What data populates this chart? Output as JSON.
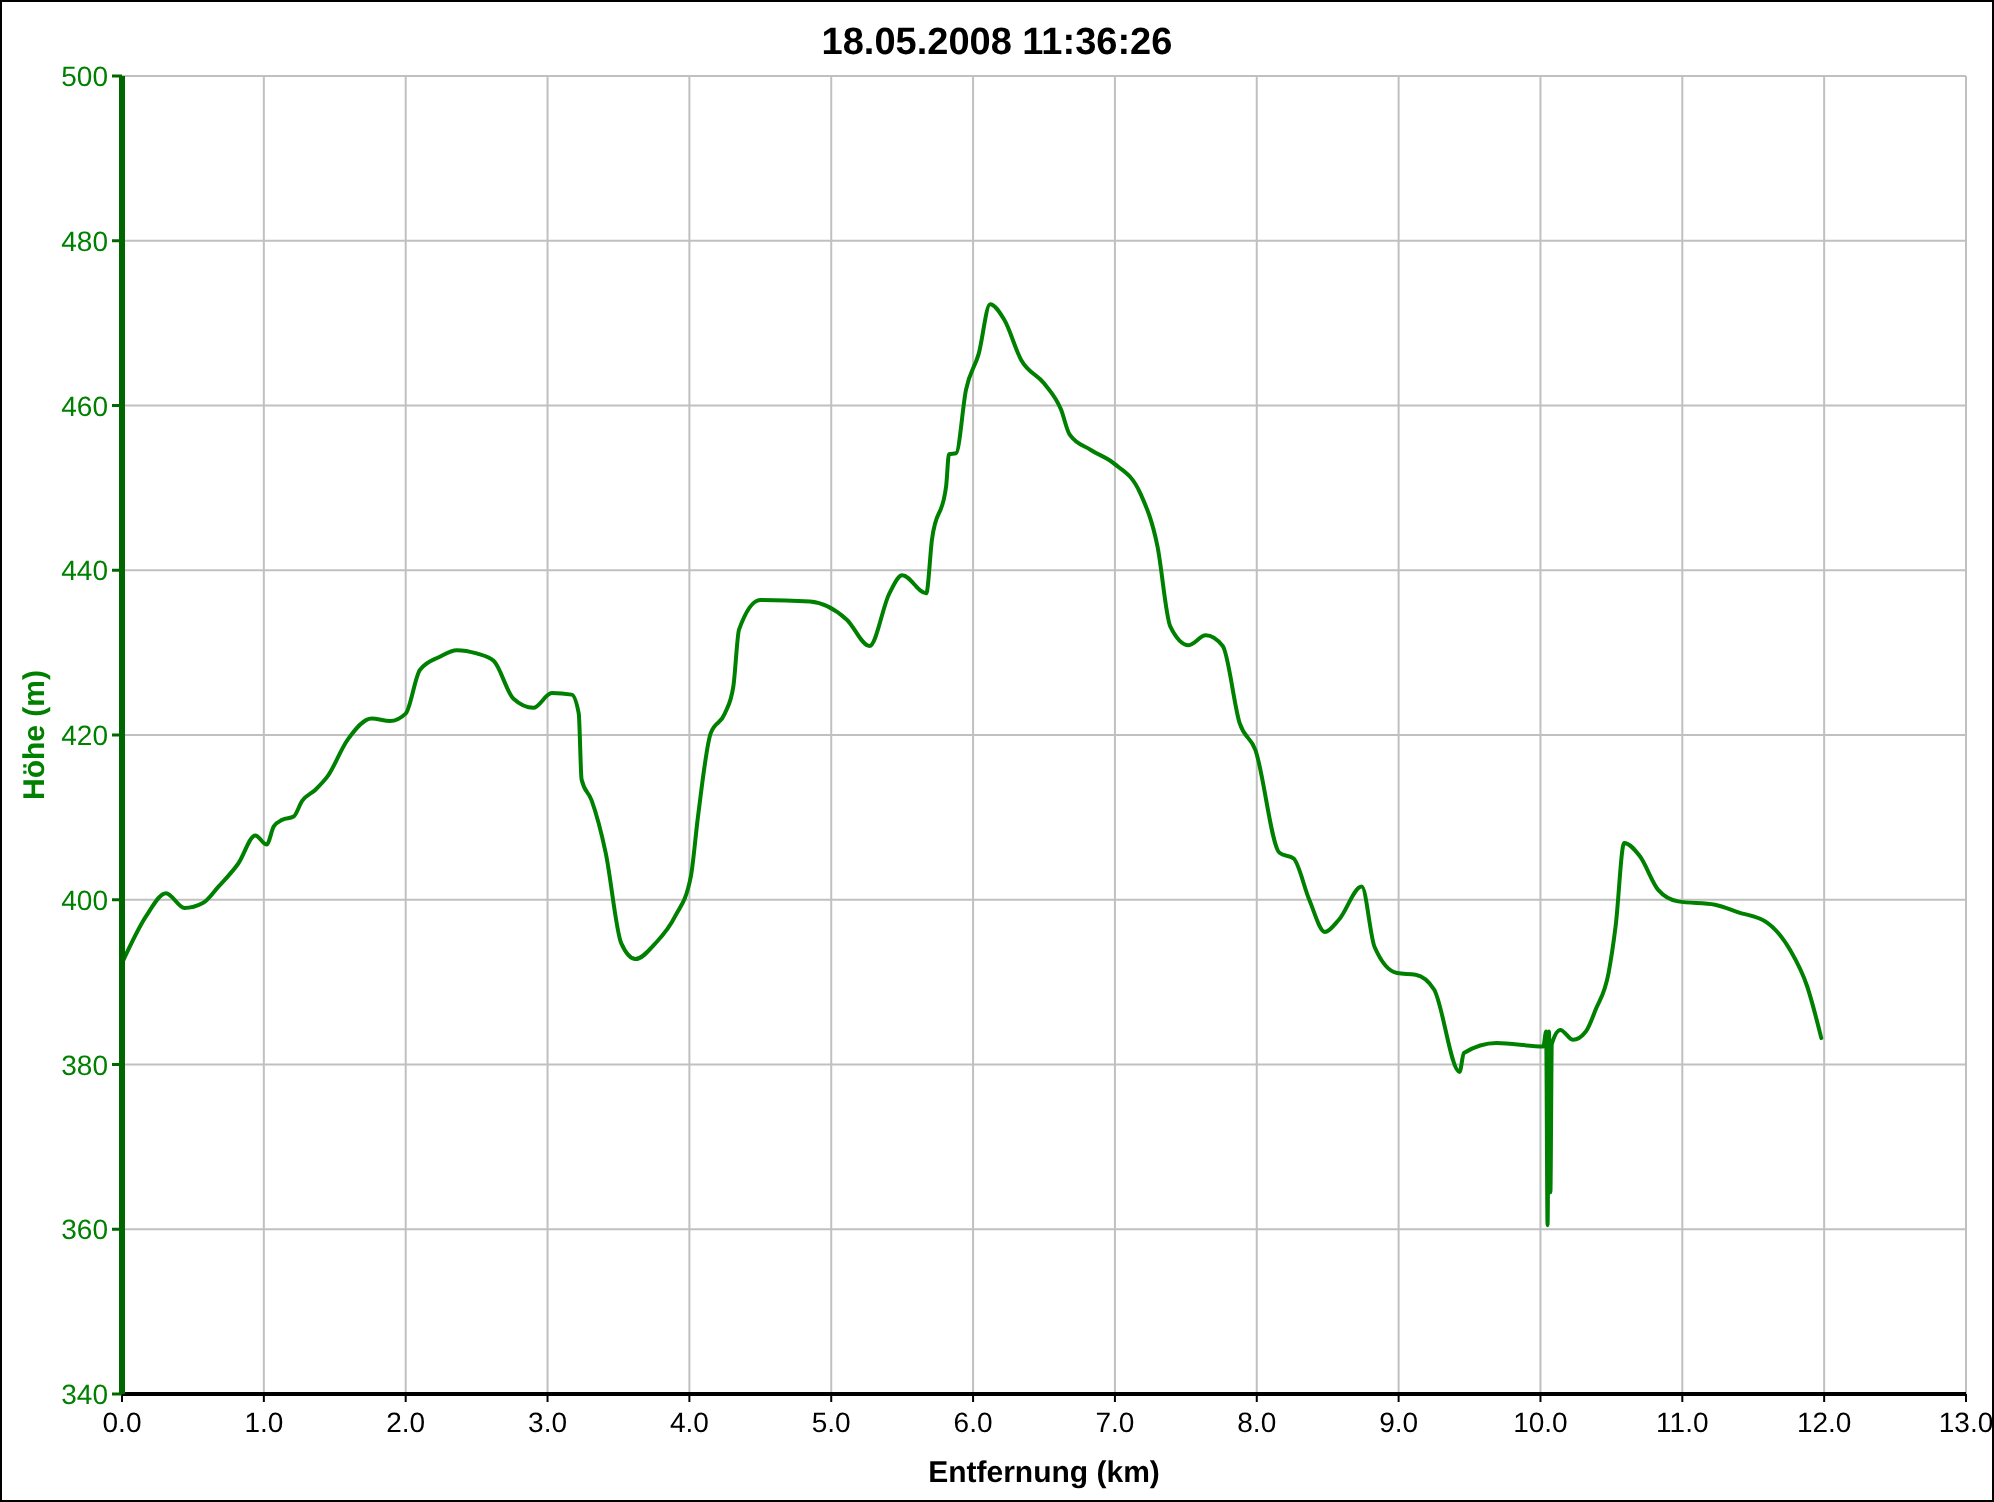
{
  "chart_data": {
    "type": "line",
    "title": "18.05.2008 11:36:26",
    "xlabel": "Entfernung (km)",
    "ylabel": "Höhe (m)",
    "xlim": [
      0,
      13
    ],
    "xticks": [
      {
        "value": 0,
        "label": "0.0"
      },
      {
        "value": 1,
        "label": "1.0"
      },
      {
        "value": 2,
        "label": "2.0"
      },
      {
        "value": 3,
        "label": "3.0"
      },
      {
        "value": 4,
        "label": "4.0"
      },
      {
        "value": 5,
        "label": "5.0"
      },
      {
        "value": 6,
        "label": "6.0"
      },
      {
        "value": 7,
        "label": "7.0"
      },
      {
        "value": 8,
        "label": "8.0"
      },
      {
        "value": 9,
        "label": "9.0"
      },
      {
        "value": 10,
        "label": "10.0"
      },
      {
        "value": 11,
        "label": "11.0"
      },
      {
        "value": 12,
        "label": "12.0"
      },
      {
        "value": 13,
        "label": "13.0"
      }
    ],
    "ylim": [
      340,
      500
    ],
    "yticks": [
      340,
      360,
      380,
      400,
      420,
      440,
      460,
      480,
      500
    ],
    "grid": true,
    "series": [
      {
        "color": "#008000",
        "x": [
          0,
          0.17,
          0.31,
          0.44,
          0.57,
          0.68,
          0.82,
          0.94,
          1.02,
          1.07,
          1.13,
          1.21,
          1.27,
          1.36,
          1.45,
          1.59,
          1.76,
          1.89,
          2.0,
          2.1,
          2.24,
          2.36,
          2.5,
          2.62,
          2.76,
          2.9,
          3.03,
          3.17,
          3.22,
          3.24,
          3.31,
          3.41,
          3.52,
          3.62,
          3.76,
          3.9,
          4.01,
          4.06,
          4.15,
          4.25,
          4.31,
          4.35,
          4.5,
          4.85,
          5.11,
          5.27,
          5.41,
          5.5,
          5.67,
          5.71,
          5.81,
          5.83,
          5.88,
          5.95,
          6.04,
          6.12,
          6.22,
          6.34,
          6.5,
          6.62,
          6.68,
          6.83,
          6.99,
          7.18,
          7.3,
          7.39,
          7.52,
          7.64,
          7.76,
          7.88,
          7.99,
          8.16,
          8.26,
          8.37,
          8.48,
          8.58,
          8.74,
          8.83,
          8.99,
          9.12,
          9.25,
          9.43,
          9.46,
          9.69,
          10.02,
          10.04,
          10.05,
          10.06,
          10.07,
          10.08,
          10.14,
          10.23,
          10.32,
          10.39,
          10.48,
          10.53,
          10.59,
          10.7,
          10.83,
          10.97,
          11.23,
          11.39,
          11.6,
          11.76,
          11.88,
          11.98
        ],
        "values": [
          392.3,
          398.0,
          400.8,
          399.0,
          399.6,
          401.6,
          404.4,
          407.8,
          406.7,
          408.9,
          409.7,
          410.1,
          412.0,
          413.3,
          415.0,
          419.4,
          422.0,
          421.7,
          422.6,
          427.9,
          429.5,
          430.3,
          429.9,
          429.0,
          424.4,
          423.3,
          425.1,
          424.9,
          422.6,
          414.6,
          412.1,
          405.7,
          394.7,
          392.8,
          394.7,
          398.0,
          402.8,
          410.0,
          420.2,
          422.6,
          425.9,
          432.8,
          436.4,
          436.2,
          434.0,
          430.8,
          437.2,
          439.4,
          437.2,
          443.7,
          450.2,
          454.1,
          454.2,
          461.9,
          466.3,
          472.3,
          470.4,
          465.5,
          462.7,
          459.5,
          456.5,
          454.6,
          453.0,
          449.3,
          442.9,
          433.2,
          430.9,
          432.1,
          430.8,
          421.4,
          418.2,
          405.7,
          405.0,
          400.0,
          396.1,
          397.6,
          401.6,
          394.3,
          391.1,
          390.9,
          389.1,
          379.1,
          381.4,
          382.6,
          382.2,
          384.0,
          360.5,
          384.0,
          364.5,
          382.5,
          384.2,
          383.0,
          384.0,
          386.7,
          391.1,
          396.8,
          406.9,
          405.3,
          401.2,
          399.8,
          399.4,
          398.5,
          397.2,
          393.9,
          389.5,
          383.2
        ]
      }
    ]
  }
}
